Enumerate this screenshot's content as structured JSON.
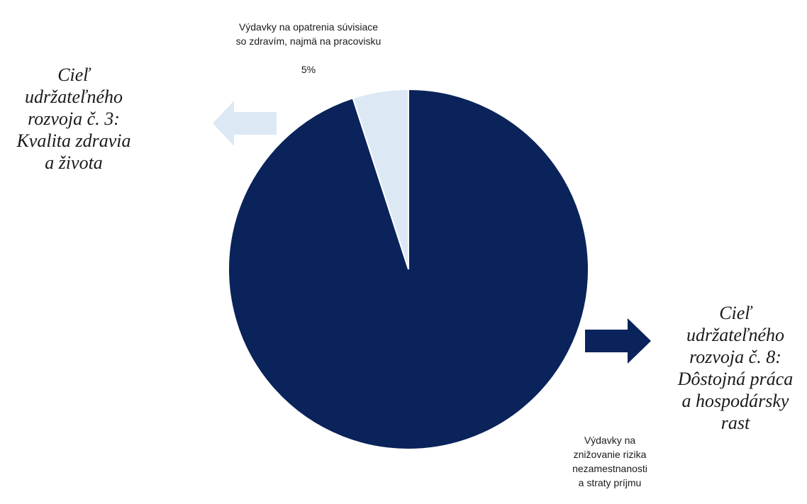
{
  "chart_data": {
    "type": "pie",
    "start_angle_deg": 0,
    "direction": "counterclockwise",
    "slices": [
      {
        "label": "Výdavky na opatrenia súvisiace\nso zdravím, najmä na pracovisku",
        "value": 5,
        "data_label": "5%",
        "color": "#dde8f5"
      },
      {
        "label": "Výdavky na\nznižovanie rizika\nnezamestnanosti\na straty príjmu",
        "value": 95,
        "data_label": "",
        "color": "#0a235a"
      }
    ]
  },
  "annotations": {
    "goal_left": "Cieľ\nudržateľného\nrozvoja č. 3:\nKvalita zdravia\na života",
    "goal_right": "Cieľ\nudržateľného\nrozvoja č. 8:\nDôstojná práca\na hospodársky\nrast",
    "arrow_left_color": "#dde8f5",
    "arrow_right_color": "#0a235a"
  }
}
